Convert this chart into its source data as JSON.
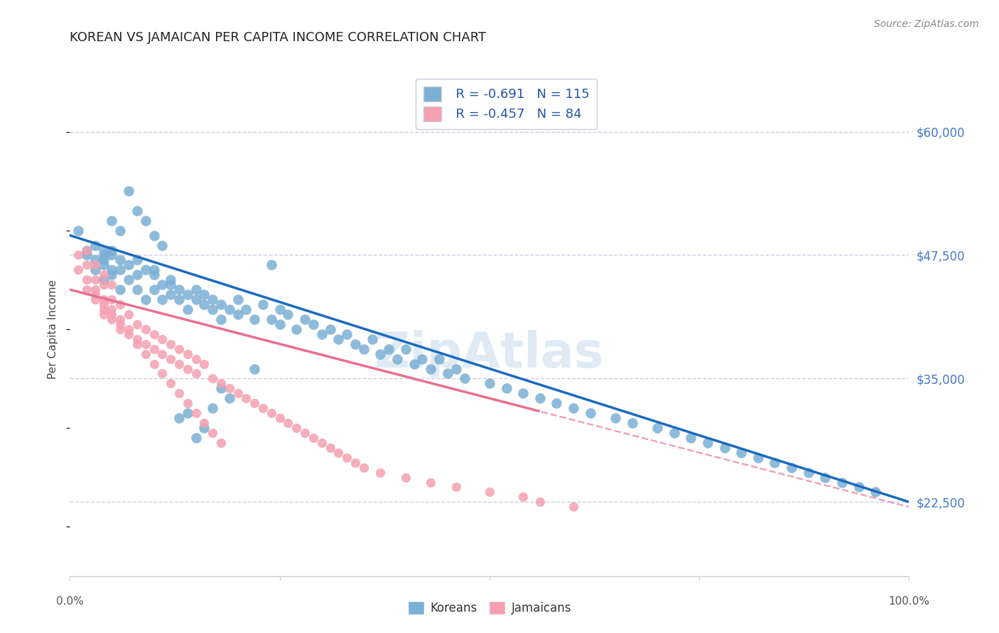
{
  "title": "KOREAN VS JAMAICAN PER CAPITA INCOME CORRELATION CHART",
  "source": "Source: ZipAtlas.com",
  "ylabel": "Per Capita Income",
  "watermark": "ZipAtlas",
  "yticks": [
    22500,
    35000,
    47500,
    60000
  ],
  "ytick_labels": [
    "$22,500",
    "$35,000",
    "$47,500",
    "$60,000"
  ],
  "xlim": [
    0.0,
    1.0
  ],
  "ylim": [
    15000,
    65000
  ],
  "korean_color": "#7bafd4",
  "jamaican_color": "#f4a0b0",
  "korean_line_color": "#1a6abf",
  "jamaican_line_color": "#e87090",
  "legend_text_color": "#2255aa",
  "grid_color": "#ccccdd",
  "source_color": "#888888",
  "watermark_color": "#b0cce8",
  "korean_R": -0.691,
  "korean_N": 115,
  "jamaican_R": -0.457,
  "jamaican_N": 84,
  "korean_intercept": 49500,
  "korean_slope": -27000,
  "jamaican_intercept": 44000,
  "jamaican_slope": -22000,
  "korean_x": [
    0.01,
    0.02,
    0.02,
    0.03,
    0.03,
    0.03,
    0.04,
    0.04,
    0.04,
    0.04,
    0.05,
    0.05,
    0.05,
    0.05,
    0.06,
    0.06,
    0.06,
    0.07,
    0.07,
    0.08,
    0.08,
    0.08,
    0.09,
    0.09,
    0.1,
    0.1,
    0.1,
    0.11,
    0.11,
    0.12,
    0.12,
    0.12,
    0.13,
    0.13,
    0.14,
    0.14,
    0.15,
    0.15,
    0.16,
    0.16,
    0.17,
    0.17,
    0.18,
    0.18,
    0.19,
    0.2,
    0.2,
    0.21,
    0.22,
    0.23,
    0.24,
    0.25,
    0.25,
    0.26,
    0.27,
    0.28,
    0.29,
    0.3,
    0.31,
    0.32,
    0.33,
    0.34,
    0.35,
    0.36,
    0.37,
    0.38,
    0.39,
    0.4,
    0.41,
    0.42,
    0.43,
    0.44,
    0.45,
    0.46,
    0.47,
    0.5,
    0.52,
    0.54,
    0.56,
    0.58,
    0.6,
    0.62,
    0.65,
    0.67,
    0.7,
    0.72,
    0.74,
    0.76,
    0.78,
    0.8,
    0.82,
    0.84,
    0.86,
    0.88,
    0.9,
    0.92,
    0.94,
    0.96,
    0.22,
    0.14,
    0.07,
    0.08,
    0.09,
    0.1,
    0.11,
    0.04,
    0.05,
    0.06,
    0.15,
    0.16,
    0.17,
    0.18,
    0.19,
    0.13,
    0.24
  ],
  "korean_y": [
    50000,
    48000,
    47500,
    47000,
    48500,
    46000,
    47000,
    48000,
    46500,
    45000,
    48000,
    46000,
    47500,
    45500,
    46000,
    47000,
    44000,
    46500,
    45000,
    45500,
    47000,
    44000,
    46000,
    43000,
    45500,
    44000,
    46000,
    44500,
    43000,
    45000,
    43500,
    44500,
    43000,
    44000,
    43500,
    42000,
    43000,
    44000,
    42500,
    43500,
    42000,
    43000,
    42500,
    41000,
    42000,
    43000,
    41500,
    42000,
    41000,
    42500,
    41000,
    42000,
    40500,
    41500,
    40000,
    41000,
    40500,
    39500,
    40000,
    39000,
    39500,
    38500,
    38000,
    39000,
    37500,
    38000,
    37000,
    38000,
    36500,
    37000,
    36000,
    37000,
    35500,
    36000,
    35000,
    34500,
    34000,
    33500,
    33000,
    32500,
    32000,
    31500,
    31000,
    30500,
    30000,
    29500,
    29000,
    28500,
    28000,
    27500,
    27000,
    26500,
    26000,
    25500,
    25000,
    24500,
    24000,
    23500,
    36000,
    31500,
    54000,
    52000,
    51000,
    49500,
    48500,
    47500,
    51000,
    50000,
    29000,
    30000,
    32000,
    34000,
    33000,
    31000,
    46500
  ],
  "jamaican_x": [
    0.01,
    0.01,
    0.02,
    0.02,
    0.02,
    0.03,
    0.03,
    0.03,
    0.04,
    0.04,
    0.04,
    0.04,
    0.05,
    0.05,
    0.05,
    0.06,
    0.06,
    0.06,
    0.07,
    0.07,
    0.08,
    0.08,
    0.09,
    0.09,
    0.1,
    0.1,
    0.11,
    0.11,
    0.12,
    0.12,
    0.13,
    0.13,
    0.14,
    0.14,
    0.15,
    0.15,
    0.16,
    0.17,
    0.18,
    0.19,
    0.2,
    0.21,
    0.22,
    0.23,
    0.24,
    0.25,
    0.26,
    0.27,
    0.28,
    0.29,
    0.3,
    0.31,
    0.32,
    0.33,
    0.34,
    0.35,
    0.37,
    0.4,
    0.43,
    0.46,
    0.5,
    0.54,
    0.56,
    0.6,
    0.03,
    0.04,
    0.05,
    0.06,
    0.07,
    0.08,
    0.09,
    0.1,
    0.11,
    0.12,
    0.13,
    0.14,
    0.15,
    0.16,
    0.17,
    0.18,
    0.02,
    0.03,
    0.04,
    0.05
  ],
  "jamaican_y": [
    47500,
    46000,
    46500,
    45000,
    44000,
    45000,
    44000,
    43000,
    44500,
    43000,
    42000,
    41500,
    43000,
    42000,
    41000,
    42500,
    41000,
    40000,
    41500,
    40000,
    40500,
    39000,
    40000,
    38500,
    39500,
    38000,
    39000,
    37500,
    38500,
    37000,
    38000,
    36500,
    37500,
    36000,
    37000,
    35500,
    36500,
    35000,
    34500,
    34000,
    33500,
    33000,
    32500,
    32000,
    31500,
    31000,
    30500,
    30000,
    29500,
    29000,
    28500,
    28000,
    27500,
    27000,
    26500,
    26000,
    25500,
    25000,
    24500,
    24000,
    23500,
    23000,
    22500,
    22000,
    43500,
    42500,
    41500,
    40500,
    39500,
    38500,
    37500,
    36500,
    35500,
    34500,
    33500,
    32500,
    31500,
    30500,
    29500,
    28500,
    48000,
    46500,
    45500,
    44500
  ]
}
